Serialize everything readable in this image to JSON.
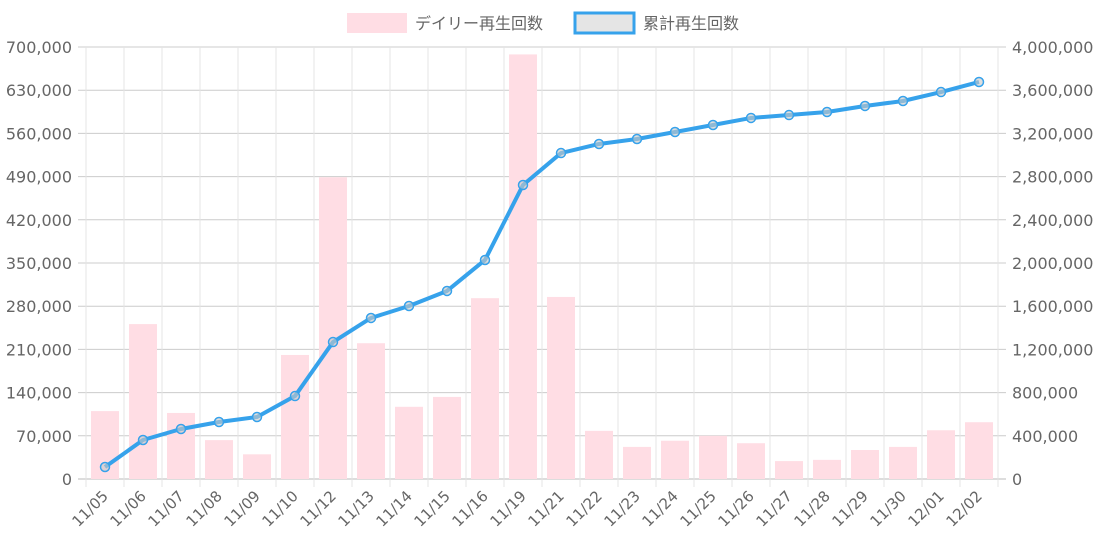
{
  "chart_data": {
    "type": "bar+line",
    "categories": [
      "11/05",
      "11/06",
      "11/07",
      "11/08",
      "11/09",
      "11/10",
      "11/12",
      "11/13",
      "11/14",
      "11/15",
      "11/16",
      "11/19",
      "11/21",
      "11/22",
      "11/23",
      "11/24",
      "11/25",
      "11/26",
      "11/27",
      "11/28",
      "11/29",
      "11/30",
      "12/01",
      "12/02"
    ],
    "series": [
      {
        "name": "デイリー再生回数",
        "type": "bar",
        "axis": "left",
        "color": "#ffdde4",
        "values": [
          110000,
          251000,
          107000,
          63000,
          40000,
          201000,
          489000,
          220000,
          117000,
          133000,
          293000,
          688000,
          295000,
          78000,
          52000,
          62000,
          70000,
          58000,
          29000,
          31000,
          47000,
          52000,
          79000,
          92000
        ]
      },
      {
        "name": "累計再生回数",
        "type": "line",
        "axis": "right",
        "color": "#36a2eb",
        "values": [
          111000,
          361000,
          463000,
          528000,
          574000,
          768000,
          1268000,
          1491000,
          1602000,
          1741000,
          2028000,
          2722000,
          3018000,
          3102000,
          3148000,
          3213000,
          3278000,
          3343000,
          3370000,
          3398000,
          3454000,
          3500000,
          3583000,
          3676000
        ]
      }
    ],
    "y_left": {
      "range": [
        0,
        700000
      ],
      "ticks": [
        "0",
        "70,000",
        "140,000",
        "210,000",
        "280,000",
        "350,000",
        "420,000",
        "490,000",
        "560,000",
        "630,000",
        "700,000"
      ]
    },
    "y_right": {
      "range": [
        0,
        4000000
      ],
      "ticks": [
        "0",
        "400,000",
        "800,000",
        "1,200,000",
        "1,600,000",
        "2,000,000",
        "2,400,000",
        "2,800,000",
        "3,200,000",
        "3,600,000",
        "4,000,000"
      ]
    },
    "grid": true,
    "legend": "top-center"
  }
}
